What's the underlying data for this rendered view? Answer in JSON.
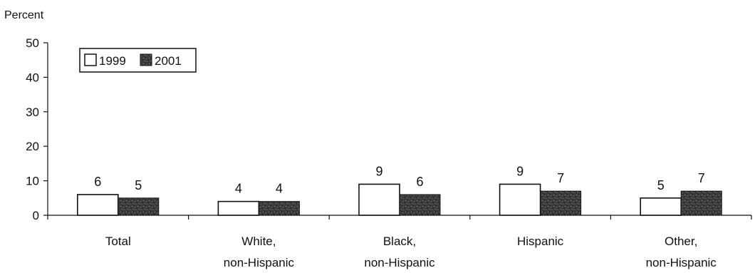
{
  "chart_data": {
    "type": "bar",
    "ylabel": "Percent",
    "ylim": [
      0,
      50
    ],
    "yticks": [
      "0",
      "10",
      "20",
      "30",
      "40",
      "50"
    ],
    "categories": [
      [
        "Total"
      ],
      [
        "White,",
        "non-Hispanic"
      ],
      [
        "Black,",
        "non-Hispanic"
      ],
      [
        "Hispanic"
      ],
      [
        "Other,",
        "non-Hispanic"
      ]
    ],
    "series": [
      {
        "name": "1999",
        "values": [
          6,
          4,
          9,
          9,
          5
        ],
        "labels": [
          "6",
          "4",
          "9",
          "9",
          "5"
        ],
        "color": "#ffffff"
      },
      {
        "name": "2001",
        "values": [
          5,
          4,
          6,
          7,
          7
        ],
        "labels": [
          "5",
          "4",
          "6",
          "7",
          "7"
        ],
        "color": "#3a3a3a"
      }
    ],
    "legend": "top-left",
    "grid": false
  }
}
